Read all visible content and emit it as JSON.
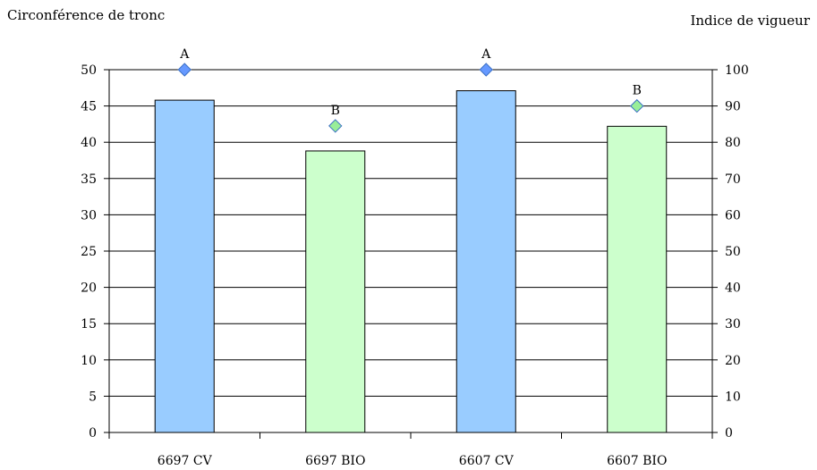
{
  "chart_data": {
    "type": "bar",
    "categories": [
      "6697 CV",
      "6697 BIO",
      "6607 CV",
      "6607 BIO"
    ],
    "series": [
      {
        "axis": "left",
        "mark": "bar",
        "values": [
          45.8,
          38.8,
          47.1,
          42.2
        ],
        "colors": [
          "#99ccff",
          "#ccffcc",
          "#99ccff",
          "#ccffcc"
        ]
      },
      {
        "axis": "right",
        "mark": "diamond",
        "values": [
          100,
          84.5,
          100,
          90
        ],
        "colors": [
          "#6699ff",
          "#99ee99",
          "#6699ff",
          "#99ee99"
        ]
      }
    ],
    "annotations": [
      "A",
      "B",
      "A",
      "B"
    ],
    "ylabel": "Circonférence de tronc",
    "y2label": "Indice de vigueur",
    "ylim": [
      0,
      50
    ],
    "y2lim": [
      0,
      100
    ],
    "yticks": [
      0,
      5,
      10,
      15,
      20,
      25,
      30,
      35,
      40,
      45,
      50
    ],
    "y2ticks": [
      0,
      10,
      20,
      30,
      40,
      50,
      60,
      70,
      80,
      90,
      100
    ],
    "grid": true,
    "legend": "none"
  }
}
